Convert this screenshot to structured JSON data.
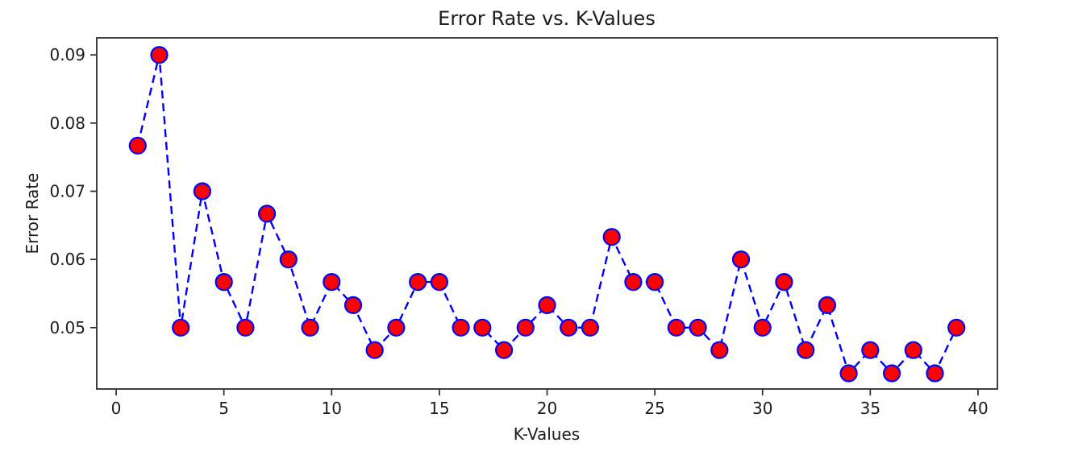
{
  "figure": {
    "title": "Error Rate vs. K-Values",
    "xlabel": "K-Values",
    "ylabel": "Error Rate"
  },
  "chart_data": {
    "type": "line",
    "title": "Error Rate vs. K-Values",
    "xlabel": "K-Values",
    "ylabel": "Error Rate",
    "x": [
      1,
      2,
      3,
      4,
      5,
      6,
      7,
      8,
      9,
      10,
      11,
      12,
      13,
      14,
      15,
      16,
      17,
      18,
      19,
      20,
      21,
      22,
      23,
      24,
      25,
      26,
      27,
      28,
      29,
      30,
      31,
      32,
      33,
      34,
      35,
      36,
      37,
      38,
      39
    ],
    "values": [
      0.0767,
      0.09,
      0.05,
      0.07,
      0.0567,
      0.05,
      0.0667,
      0.06,
      0.05,
      0.0567,
      0.0533,
      0.0467,
      0.05,
      0.0567,
      0.0567,
      0.05,
      0.05,
      0.0467,
      0.05,
      0.0533,
      0.05,
      0.05,
      0.0633,
      0.0567,
      0.0567,
      0.05,
      0.05,
      0.0467,
      0.06,
      0.05,
      0.0567,
      0.0467,
      0.0533,
      0.0433,
      0.0467,
      0.0433,
      0.0467,
      0.0433,
      0.05
    ],
    "xlim": [
      -0.9,
      40.9
    ],
    "ylim": [
      0.041,
      0.0925
    ],
    "xticks": [
      0,
      5,
      10,
      15,
      20,
      25,
      30,
      35,
      40
    ],
    "xtick_labels": [
      "0",
      "5",
      "10",
      "15",
      "20",
      "25",
      "30",
      "35",
      "40"
    ],
    "yticks": [
      0.05,
      0.06,
      0.07,
      0.08,
      0.09
    ],
    "ytick_labels": [
      "0.05",
      "0.06",
      "0.07",
      "0.08",
      "0.09"
    ],
    "grid": false,
    "legend": "none",
    "line_style": "dashed",
    "line_color": "#0000ff",
    "marker": "circle",
    "marker_face_color": "#ff0000",
    "marker_edge_color": "#0000ff",
    "spine_color": "#2b2b2b"
  }
}
